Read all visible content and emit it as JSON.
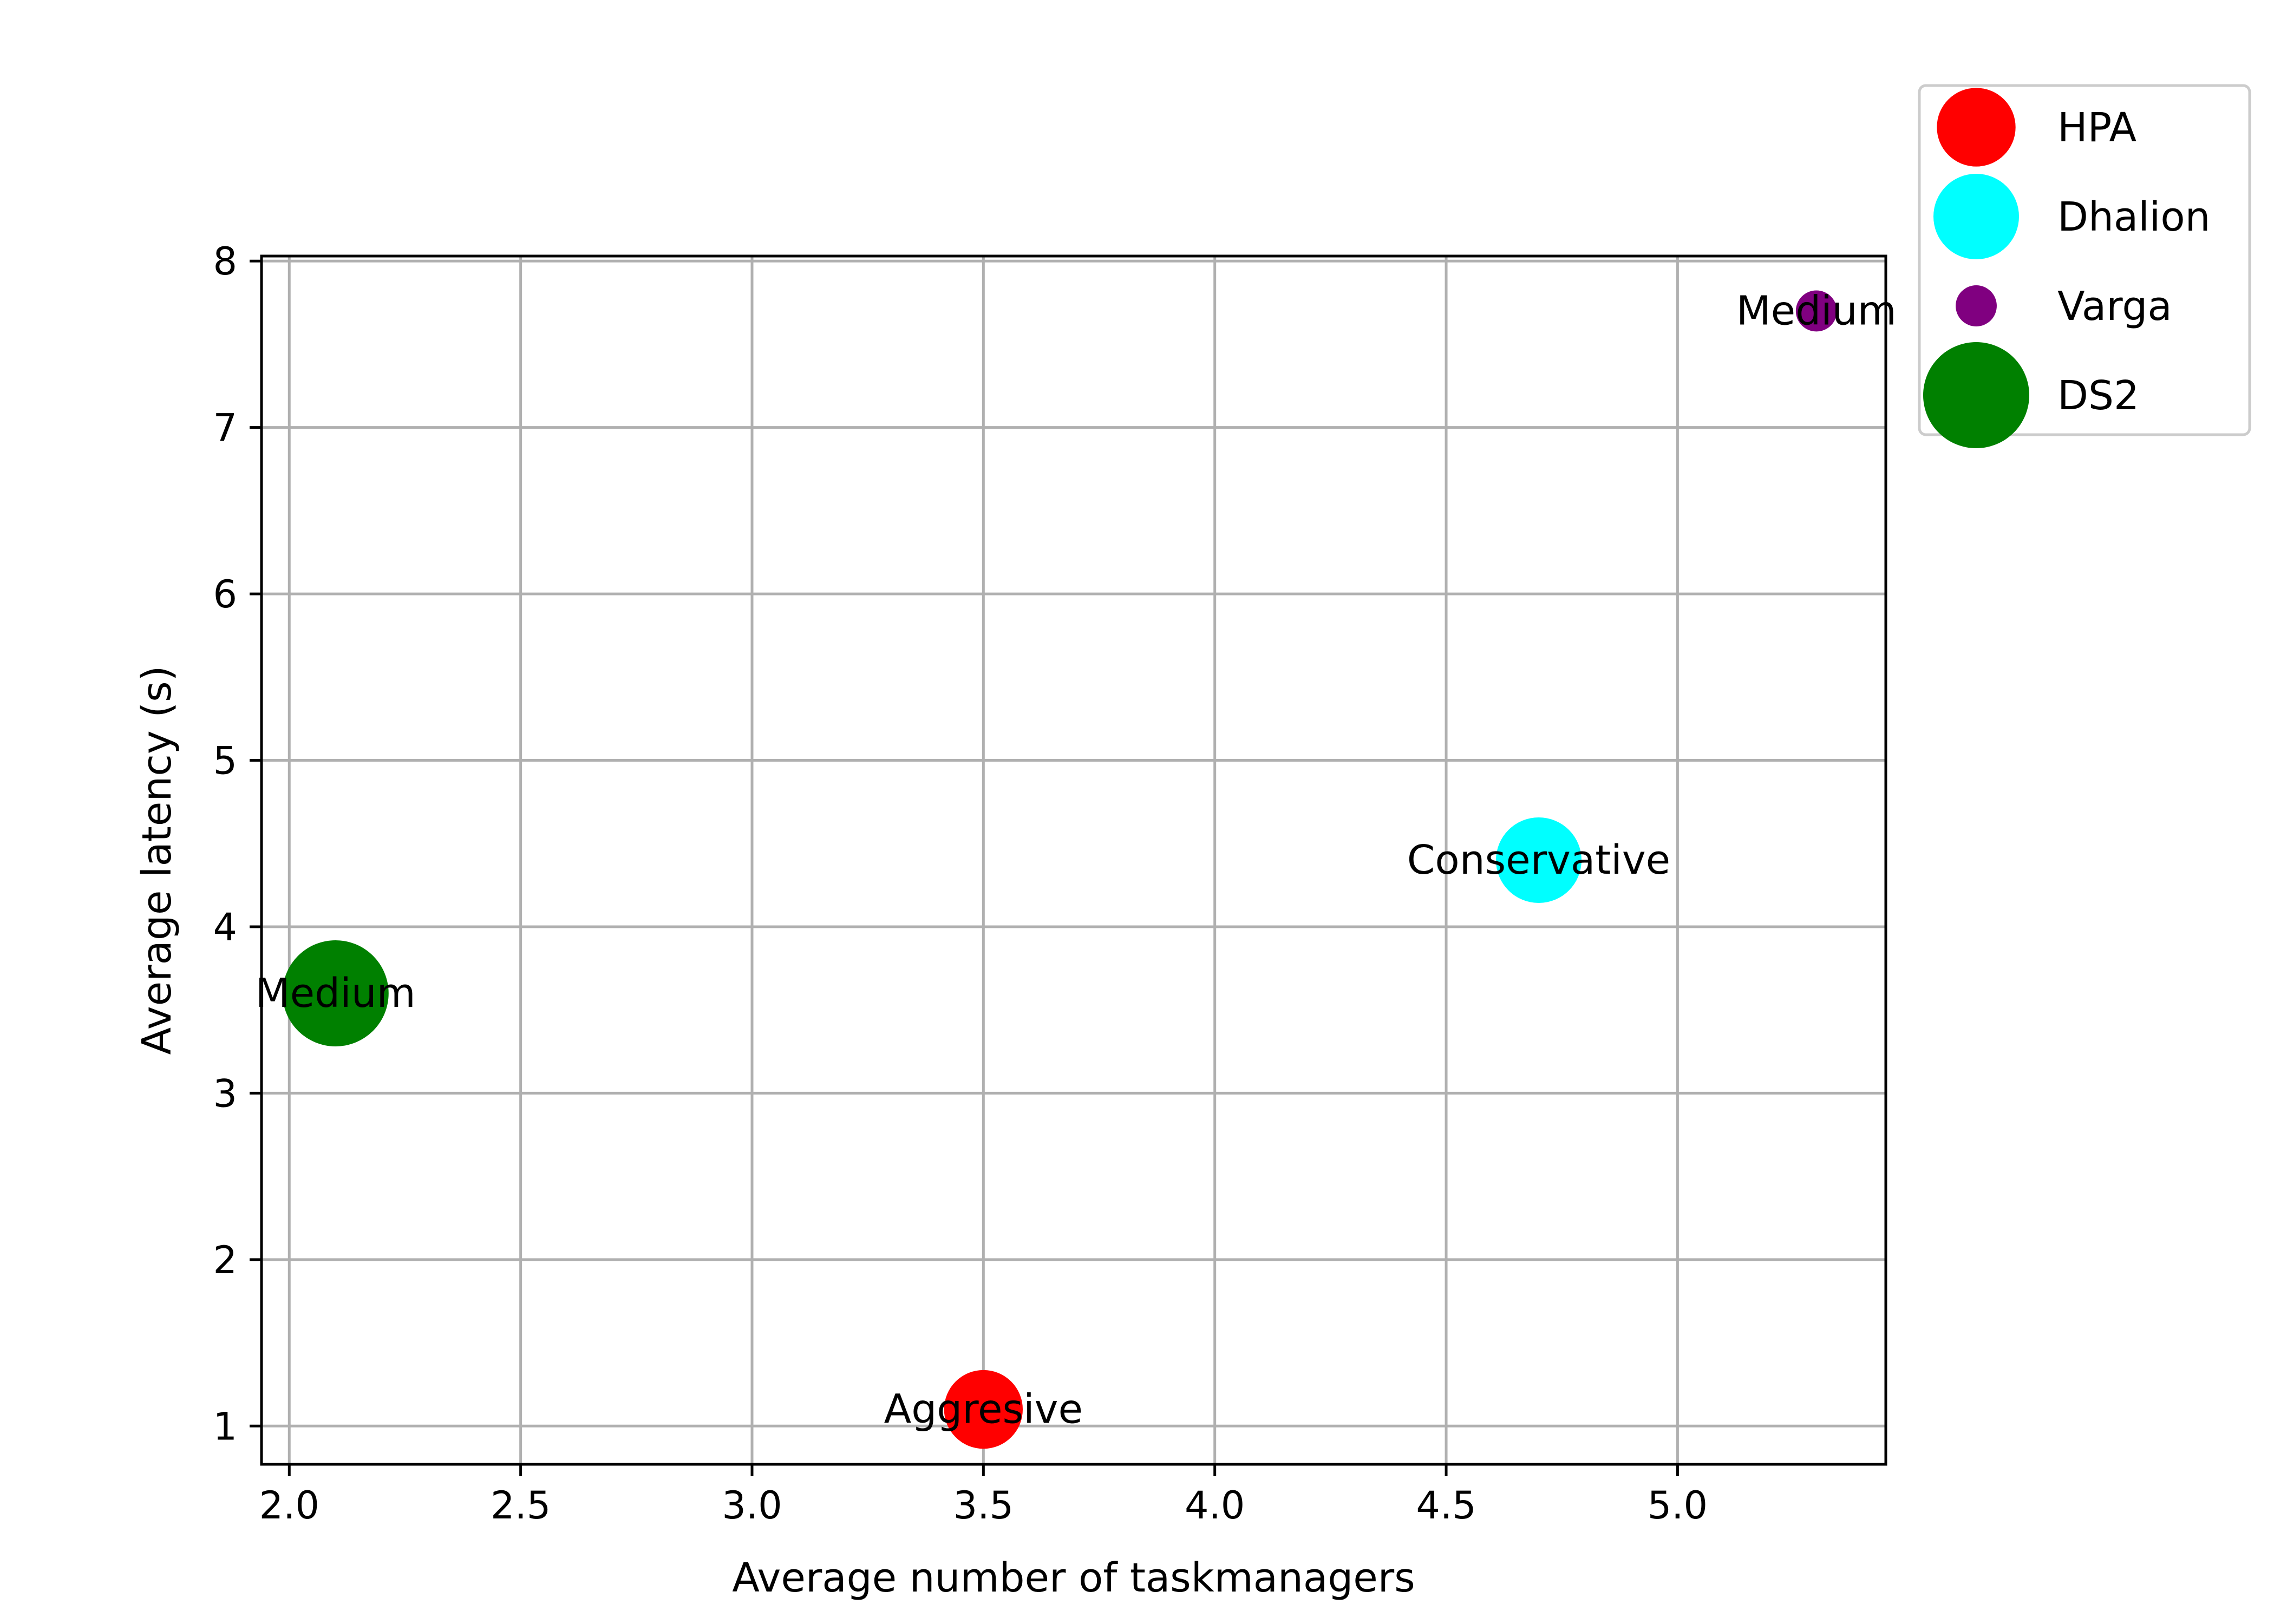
{
  "chart_data": {
    "type": "scatter",
    "title": "",
    "xlabel": "Average number of taskmanagers",
    "ylabel": "Average latency (s)",
    "xlim": [
      1.94,
      5.45
    ],
    "ylim": [
      0.77,
      8.03
    ],
    "xticks": [
      2.0,
      2.5,
      3.0,
      3.5,
      4.0,
      4.5,
      5.0
    ],
    "xtick_labels": [
      "2.0",
      "2.5",
      "3.0",
      "3.5",
      "4.0",
      "4.5",
      "5.0"
    ],
    "yticks": [
      1,
      2,
      3,
      4,
      5,
      6,
      7,
      8
    ],
    "ytick_labels": [
      "1",
      "2",
      "3",
      "4",
      "5",
      "6",
      "7",
      "8"
    ],
    "grid": true,
    "legend_position": "outside-top-right",
    "series": [
      {
        "name": "HPA",
        "color": "#ff0000",
        "relative_size": 0.55,
        "points": [
          {
            "x": 3.5,
            "y": 1.1,
            "label": "Aggresive"
          }
        ]
      },
      {
        "name": "Dhalion",
        "color": "#00ffff",
        "relative_size": 0.65,
        "points": [
          {
            "x": 4.7,
            "y": 4.4,
            "label": "Conservative"
          }
        ]
      },
      {
        "name": "Varga",
        "color": "#800080",
        "relative_size": 0.15,
        "points": [
          {
            "x": 5.3,
            "y": 7.7,
            "label": "Medium"
          }
        ]
      },
      {
        "name": "DS2",
        "color": "#008000",
        "relative_size": 1.0,
        "points": [
          {
            "x": 2.1,
            "y": 3.6,
            "label": "Medium"
          }
        ]
      }
    ]
  }
}
